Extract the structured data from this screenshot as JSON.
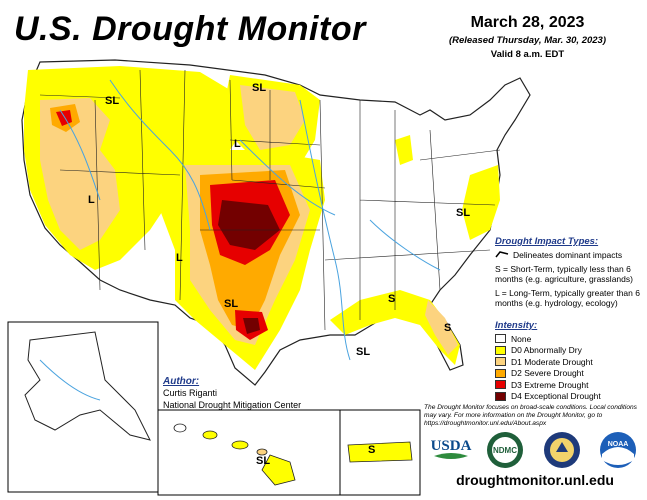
{
  "title": "U.S. Drought Monitor",
  "date": "March 28, 2023",
  "released": "(Released Thursday, Mar. 30, 2023)",
  "valid": "Valid 8 a.m. EDT",
  "map_labels": [
    "SL",
    "SL",
    "L",
    "L",
    "L",
    "SL",
    "SL",
    "SL",
    "S",
    "S",
    "SL",
    "S"
  ],
  "impact": {
    "heading": "Drought Impact Types:",
    "delineates": "Delineates dominant impacts",
    "s_desc": "S = Short-Term, typically less than 6 months (e.g. agriculture, grasslands)",
    "l_desc": "L = Long-Term, typically greater than 6 months (e.g. hydrology, ecology)"
  },
  "intensity": {
    "heading": "Intensity:",
    "items": [
      {
        "label": "None",
        "color": "#ffffff"
      },
      {
        "label": "D0 Abnormally Dry",
        "color": "#ffff00"
      },
      {
        "label": "D1 Moderate Drought",
        "color": "#fcd37f"
      },
      {
        "label": "D2 Severe Drought",
        "color": "#ffaa00"
      },
      {
        "label": "D3 Extreme Drought",
        "color": "#e60000"
      },
      {
        "label": "D4 Exceptional Drought",
        "color": "#730000"
      }
    ]
  },
  "author": {
    "heading": "Author:",
    "name": "Curtis Riganti",
    "org": "National Drought Mitigation Center"
  },
  "note": "The Drought Monitor focuses on broad-scale conditions. Local conditions may vary. For more information on the Drought Monitor, go to https://droughtmonitor.unl.edu/About.aspx",
  "logos": {
    "usda": "USDA",
    "ndmc": "NDMC",
    "noaa": "NOAA"
  },
  "url": "droughtmonitor.unl.edu",
  "colors": {
    "d0": "#ffff00",
    "d1": "#fcd37f",
    "d2": "#ffaa00",
    "d3": "#e60000",
    "d4": "#730000",
    "water": "#4aa3df"
  }
}
